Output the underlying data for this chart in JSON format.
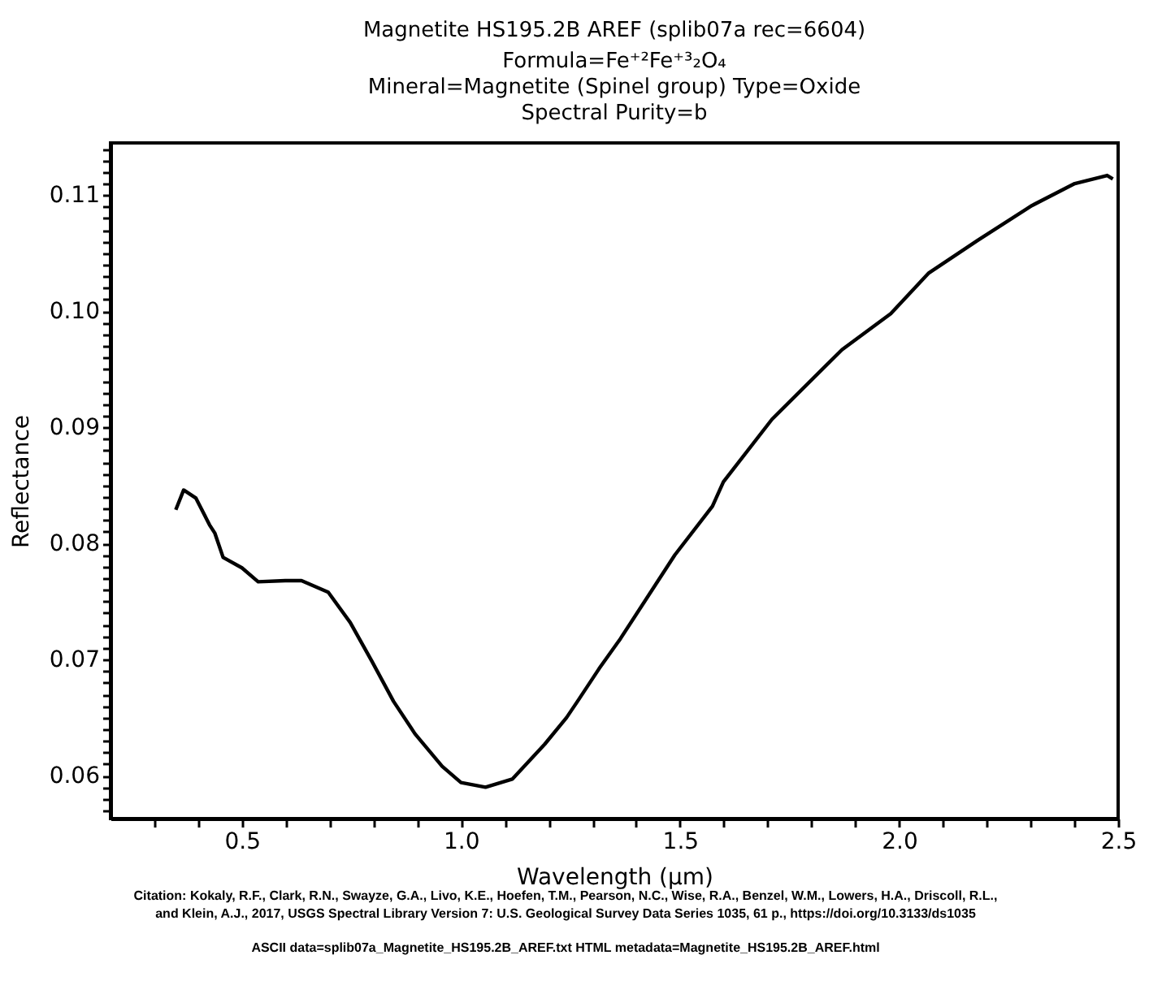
{
  "chart_data": {
    "type": "line",
    "title": "Magnetite HS195.2B AREF (splib07a rec=6604)",
    "subtitle": "Formula=Fe⁺²Fe⁺³₂O₄\nMineral=Magnetite (Spinel group)   Type=Oxide\nSpectral Purity=b",
    "xlabel": "Wavelength (µm)",
    "ylabel": "Reflectance",
    "series": [
      {
        "color": "#000000",
        "x": [
          0.349,
          0.367,
          0.395,
          0.426,
          0.438,
          0.457,
          0.5,
          0.537,
          0.599,
          0.636,
          0.697,
          0.747,
          0.796,
          0.846,
          0.895,
          0.957,
          1.0,
          1.056,
          1.117,
          1.191,
          1.241,
          1.266,
          1.315,
          1.364,
          1.488,
          1.574,
          1.599,
          1.71,
          1.87,
          1.981,
          2.068,
          2.179,
          2.303,
          2.401,
          2.475,
          2.488
        ],
        "values": [
          0.0829,
          0.0846,
          0.0839,
          0.0816,
          0.0809,
          0.0788,
          0.0779,
          0.0767,
          0.0768,
          0.0768,
          0.0758,
          0.0732,
          0.0699,
          0.0664,
          0.0636,
          0.0608,
          0.0594,
          0.059,
          0.0597,
          0.0627,
          0.065,
          0.0664,
          0.0692,
          0.0718,
          0.079,
          0.0832,
          0.0853,
          0.0907,
          0.0967,
          0.0998,
          0.1033,
          0.1061,
          0.1091,
          0.111,
          0.1117,
          0.1114
        ]
      }
    ],
    "xlim": [
      0.2,
      2.5
    ],
    "xticks": [
      {
        "value": 0.3,
        "label": null
      },
      {
        "value": 0.4,
        "label": null
      },
      0.5,
      {
        "value": 0.6,
        "label": null
      },
      {
        "value": 0.7,
        "label": null
      },
      {
        "value": 0.8,
        "label": null
      },
      {
        "value": 0.9,
        "label": null
      },
      {
        "value": 1.0,
        "label": "1.0"
      },
      {
        "value": 1.1,
        "label": null
      },
      {
        "value": 1.2,
        "label": null
      },
      {
        "value": 1.3,
        "label": null
      },
      {
        "value": 1.4,
        "label": null
      },
      1.5,
      {
        "value": 1.6,
        "label": null
      },
      {
        "value": 1.7,
        "label": null
      },
      {
        "value": 1.8,
        "label": null
      },
      {
        "value": 1.9,
        "label": null
      },
      {
        "value": 2.0,
        "label": "2.0"
      },
      {
        "value": 2.1,
        "label": null
      },
      {
        "value": 2.2,
        "label": null
      },
      {
        "value": 2.3,
        "label": null
      },
      {
        "value": 2.4,
        "label": null
      },
      2.5
    ],
    "ylim": [
      0.0563,
      0.1145
    ],
    "yticks": [
      {
        "value": 0.057,
        "label": null
      },
      {
        "value": 0.058,
        "label": null
      },
      {
        "value": 0.059,
        "label": null
      },
      0.06,
      {
        "value": 0.061,
        "label": null
      },
      {
        "value": 0.062,
        "label": null
      },
      {
        "value": 0.063,
        "label": null
      },
      {
        "value": 0.064,
        "label": null
      },
      {
        "value": 0.065,
        "label": null
      },
      {
        "value": 0.066,
        "label": null
      },
      {
        "value": 0.067,
        "label": null
      },
      {
        "value": 0.068,
        "label": null
      },
      {
        "value": 0.069,
        "label": null
      },
      0.07,
      {
        "value": 0.071,
        "label": null
      },
      {
        "value": 0.072,
        "label": null
      },
      {
        "value": 0.073,
        "label": null
      },
      {
        "value": 0.074,
        "label": null
      },
      {
        "value": 0.075,
        "label": null
      },
      {
        "value": 0.076,
        "label": null
      },
      {
        "value": 0.077,
        "label": null
      },
      {
        "value": 0.078,
        "label": null
      },
      {
        "value": 0.079,
        "label": null
      },
      0.08,
      {
        "value": 0.081,
        "label": null
      },
      {
        "value": 0.082,
        "label": null
      },
      {
        "value": 0.083,
        "label": null
      },
      {
        "value": 0.084,
        "label": null
      },
      {
        "value": 0.085,
        "label": null
      },
      {
        "value": 0.086,
        "label": null
      },
      {
        "value": 0.087,
        "label": null
      },
      {
        "value": 0.088,
        "label": null
      },
      {
        "value": 0.089,
        "label": null
      },
      0.09,
      {
        "value": 0.091,
        "label": null
      },
      {
        "value": 0.092,
        "label": null
      },
      {
        "value": 0.093,
        "label": null
      },
      {
        "value": 0.094,
        "label": null
      },
      {
        "value": 0.095,
        "label": null
      },
      {
        "value": 0.096,
        "label": null
      },
      {
        "value": 0.097,
        "label": null
      },
      {
        "value": 0.098,
        "label": null
      },
      {
        "value": 0.099,
        "label": null
      },
      {
        "value": 0.1,
        "label": "0.10"
      },
      {
        "value": 0.101,
        "label": null
      },
      {
        "value": 0.102,
        "label": null
      },
      {
        "value": 0.103,
        "label": null
      },
      {
        "value": 0.104,
        "label": null
      },
      {
        "value": 0.105,
        "label": null
      },
      {
        "value": 0.106,
        "label": null
      },
      {
        "value": 0.107,
        "label": null
      },
      {
        "value": 0.108,
        "label": null
      },
      {
        "value": 0.109,
        "label": null
      },
      0.11,
      {
        "value": 0.111,
        "label": null
      },
      {
        "value": 0.112,
        "label": null
      },
      {
        "value": 0.113,
        "label": null
      },
      {
        "value": 0.114,
        "label": null
      }
    ],
    "grid": false,
    "marker": "none",
    "line_style": "solid",
    "annotations": [
      "Citation: Kokaly, R.F., Clark, R.N., Swayze, G.A., Livo, K.E., Hoefen, T.M., Pearson, N.C., Wise, R.A., Benzel, W.M., Lowers, H.A., Driscoll, R.L.,",
      "and Klein, A.J., 2017, USGS Spectral Library Version 7: U.S. Geological Survey Data Series 1035, 61 p., https://doi.org/10.3133/ds1035",
      "ASCII data=splib07a_Magnetite_HS195.2B_AREF.txt        HTML metadata=Magnetite_HS195.2B_AREF.html"
    ]
  }
}
